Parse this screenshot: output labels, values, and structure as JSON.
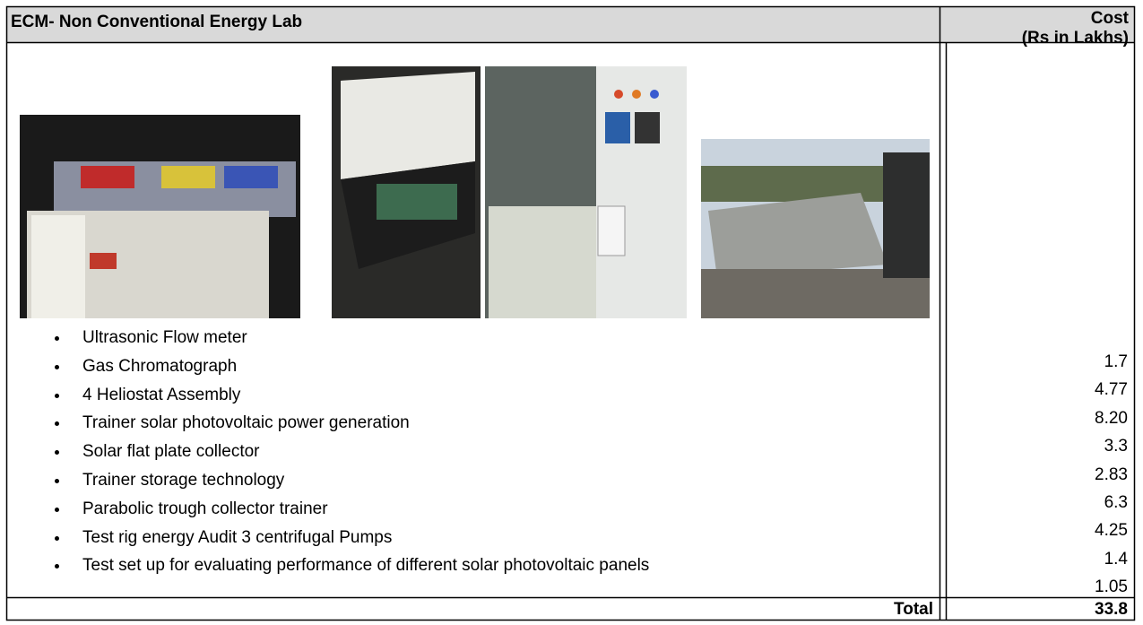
{
  "table": {
    "header": {
      "title": "ECM- Non Conventional Energy Lab",
      "cost_heading": [
        "Cost",
        "(Rs in Lakhs)"
      ]
    },
    "items": [
      "Ultrasonic Flow meter",
      "Gas Chromatograph",
      "4 Heliostat Assembly",
      "Trainer solar photovoltaic power generation",
      "Solar flat plate collector",
      "Trainer storage technology",
      "Parabolic trough collector trainer",
      "Test rig energy Audit 3 centrifugal Pumps",
      "Test set up for evaluating performance of different solar photovoltaic panels"
    ],
    "costs": [
      "1.7",
      "4.77",
      "8.20",
      "3.3",
      "2.83",
      "6.3",
      "4.25",
      "1.4",
      "1.05"
    ],
    "total_label": "Total",
    "total_value": "33.8"
  }
}
